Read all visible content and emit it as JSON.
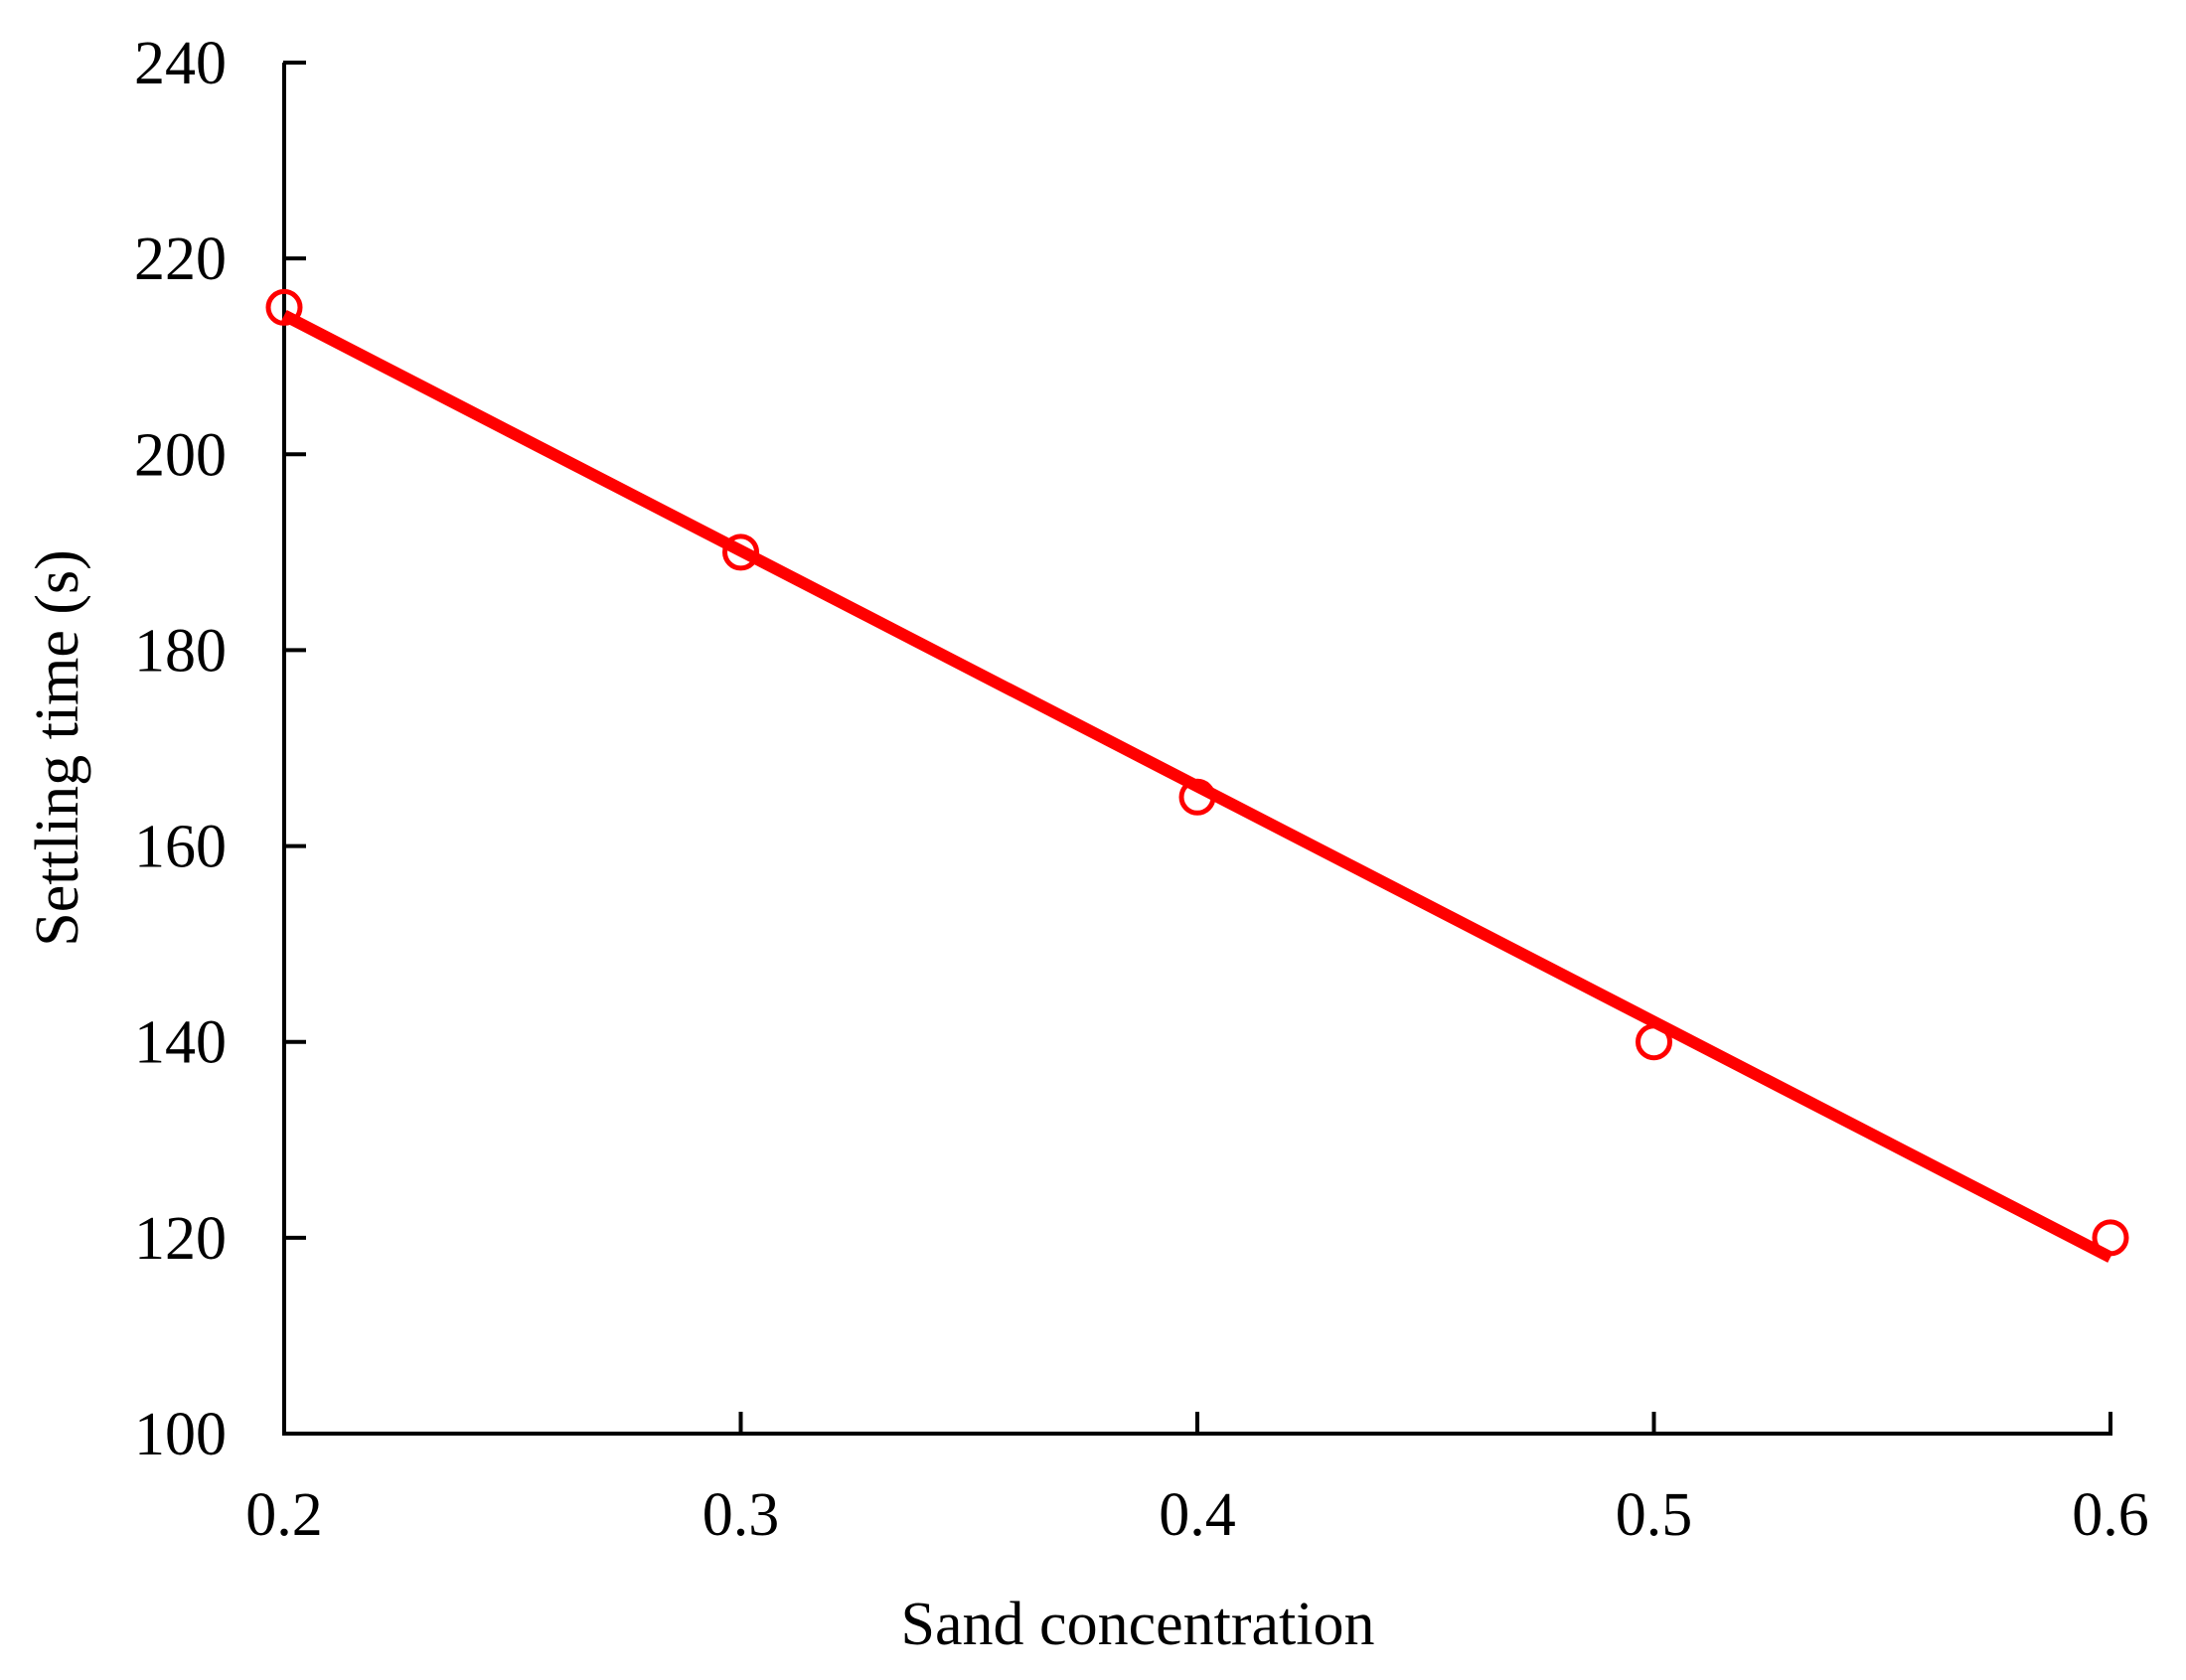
{
  "chart_data": {
    "type": "scatter",
    "title": "",
    "xlabel": "Sand concentration",
    "ylabel": "Settling time (s)",
    "xlim": [
      0.2,
      0.6
    ],
    "ylim": [
      100,
      240
    ],
    "xticks": [
      "0.2",
      "0.3",
      "0.4",
      "0.5",
      "0.6"
    ],
    "yticks": [
      "100",
      "120",
      "140",
      "160",
      "180",
      "200",
      "220",
      "240"
    ],
    "grid": false,
    "legend": "none",
    "series": [
      {
        "kind": "markers",
        "marker": "open-circle",
        "color": "#ff0000",
        "x": [
          0.2,
          0.3,
          0.4,
          0.5,
          0.6
        ],
        "y": [
          215,
          190,
          165,
          140,
          120
        ]
      },
      {
        "kind": "fit-line",
        "color": "#ff0000",
        "x": [
          0.2,
          0.6
        ],
        "y": [
          214.2,
          118
        ]
      }
    ]
  }
}
